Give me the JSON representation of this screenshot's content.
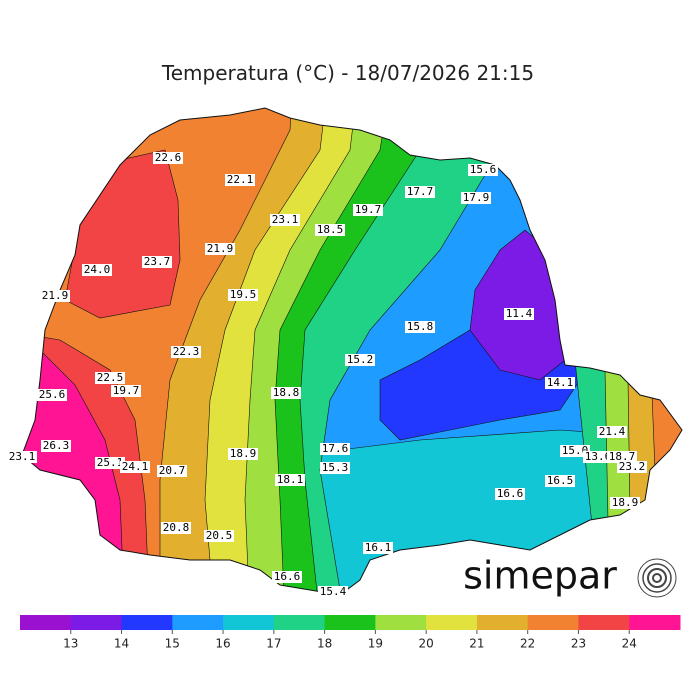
{
  "title": "Temperatura (°C) - 18/07/2026 21:15",
  "logo": "simepar",
  "colorbar": {
    "colors": [
      "#9a12cf",
      "#7d1be6",
      "#2238ff",
      "#1e9cff",
      "#12c6d6",
      "#1fd285",
      "#1cc21c",
      "#9fe040",
      "#e2e23e",
      "#e2b02e",
      "#f08232",
      "#f24444",
      "#ff1493"
    ],
    "ticks": [
      13,
      14,
      15,
      16,
      17,
      18,
      19,
      20,
      21,
      22,
      23,
      24
    ]
  },
  "stations": [
    "22.6",
    "22.1",
    "23.1",
    "18.5",
    "19.7",
    "17.7",
    "15.6",
    "17.9",
    "24.0",
    "23.7",
    "21.9",
    "21.9",
    "19.5",
    "15.8",
    "11.4",
    "22.3",
    "15.2",
    "22.5",
    "19.7",
    "25.6",
    "14.1",
    "18.8",
    "21.4",
    "26.3",
    "23.1",
    "17.6",
    "15.0",
    "13.6",
    "18.7",
    "23.2",
    "18.9",
    "25.1",
    "24.1",
    "20.7",
    "15.3",
    "18.1",
    "16.5",
    "16.6",
    "18.9",
    "20.8",
    "20.5",
    "16.1",
    "16.6",
    "15.4"
  ]
}
